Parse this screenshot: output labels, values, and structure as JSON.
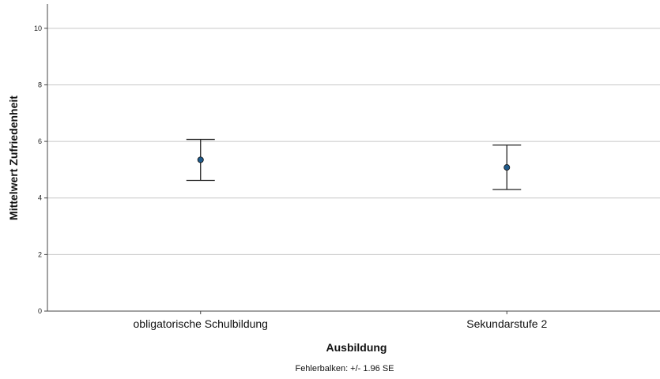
{
  "chart_data": {
    "type": "scatter",
    "subtype": "error-bar",
    "title": "",
    "xlabel": "Ausbildung",
    "ylabel": "Mittelwert Zufriedenheit",
    "categories": [
      "obligatorische Schulbildung",
      "Sekundarstufe 2"
    ],
    "means": [
      5.35,
      5.08
    ],
    "lower": [
      4.62,
      4.3
    ],
    "upper": [
      6.07,
      5.87
    ],
    "ylim": [
      0,
      11
    ],
    "yticks": [
      0,
      2,
      4,
      6,
      8,
      10
    ],
    "grid": true,
    "footnote": "Fehlerbalken: +/- 1.96 SE",
    "colors": {
      "point": "#1f5a8a",
      "errorbar": "#222222",
      "grid": "#c8c8c8"
    }
  }
}
